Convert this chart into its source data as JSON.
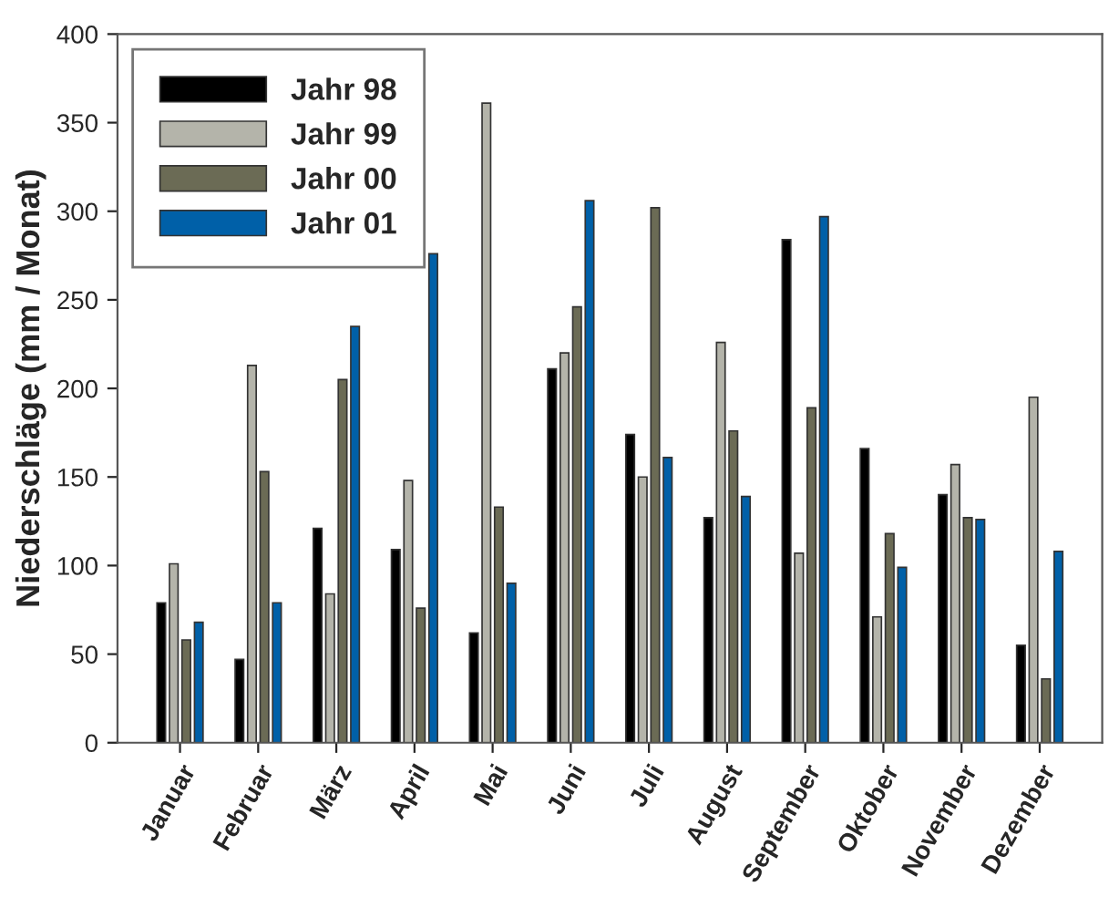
{
  "chart_data": {
    "type": "bar",
    "ylabel": "Niederschläge (mm / Monat)",
    "categories": [
      "Januar",
      "Februar",
      "März",
      "April",
      "Mai",
      "Juni",
      "Juli",
      "August",
      "September",
      "Oktober",
      "November",
      "Dezember"
    ],
    "series": [
      {
        "name": "Jahr 98",
        "color": "#000000",
        "values": [
          79,
          47,
          121,
          109,
          62,
          211,
          174,
          127,
          284,
          166,
          140,
          55
        ]
      },
      {
        "name": "Jahr 99",
        "color": "#b4b4aa",
        "values": [
          101,
          213,
          84,
          148,
          361,
          220,
          150,
          226,
          107,
          71,
          157,
          195
        ]
      },
      {
        "name": "Jahr 00",
        "color": "#6b6b55",
        "values": [
          58,
          153,
          205,
          76,
          133,
          246,
          302,
          176,
          189,
          118,
          127,
          36
        ]
      },
      {
        "name": "Jahr 01",
        "color": "#0060a8",
        "values": [
          68,
          79,
          235,
          276,
          90,
          306,
          161,
          139,
          297,
          99,
          126,
          108
        ]
      }
    ],
    "ylim": [
      0,
      400
    ],
    "yticks": [
      0,
      50,
      100,
      150,
      200,
      250,
      300,
      350,
      400
    ],
    "grid": false,
    "legend": "top left"
  }
}
